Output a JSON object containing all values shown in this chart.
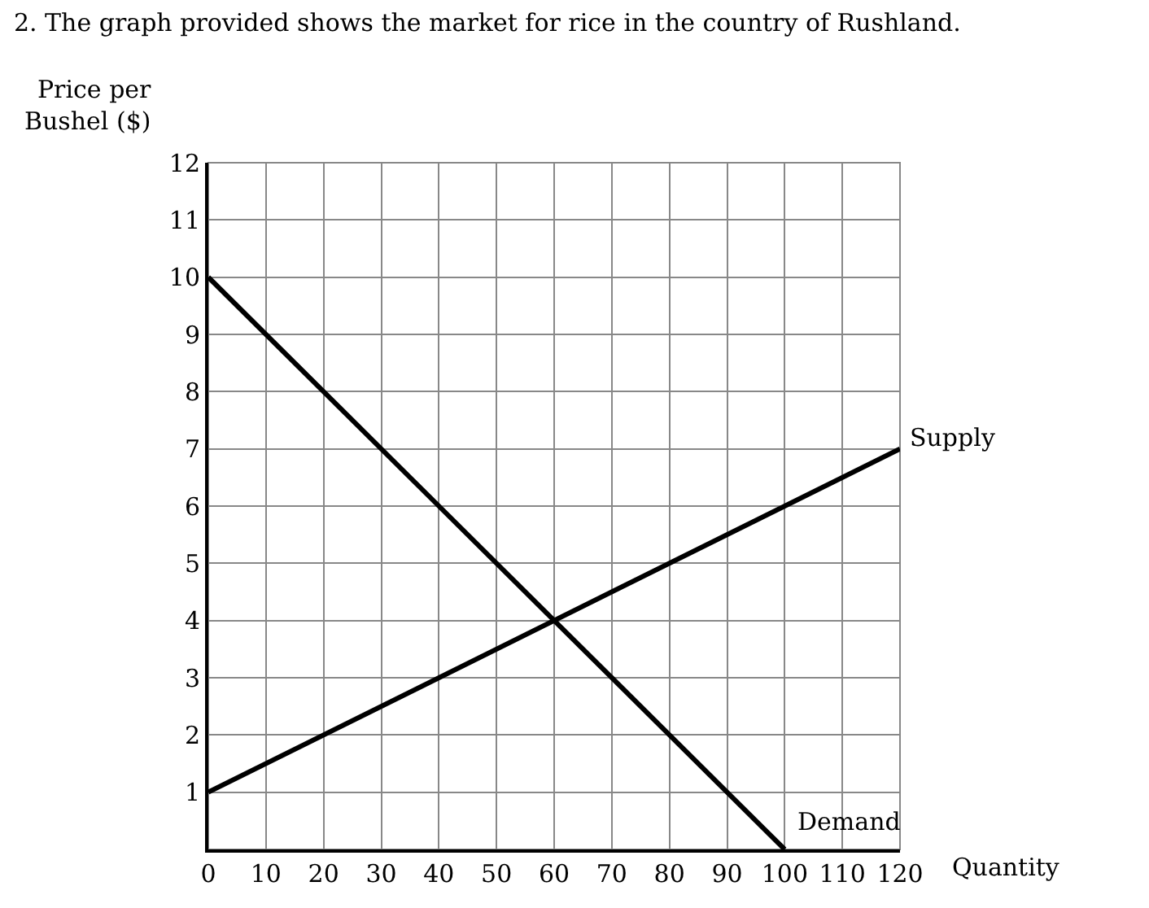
{
  "chart_data": {
    "type": "line",
    "title": "2. The graph provided shows the market for rice in the country of Rushland.",
    "xlabel": "Quantity",
    "ylabel": "Price per\nBushel ($)",
    "series": [
      {
        "x": [
          0,
          100
        ],
        "values": [
          10,
          0
        ],
        "color": "#000000"
      },
      {
        "x": [
          0,
          120
        ],
        "values": [
          1,
          7
        ],
        "color": "#000000"
      }
    ],
    "annotations": [
      {
        "text": "Supply",
        "x": 120,
        "y": 7
      },
      {
        "text": "Demand",
        "x": 100,
        "y": 0
      }
    ],
    "xlim": [
      0,
      120
    ],
    "ylim": [
      0,
      12
    ],
    "xticks": [
      0,
      10,
      20,
      30,
      40,
      50,
      60,
      70,
      80,
      90,
      100,
      110,
      120
    ],
    "yticks": [
      {
        "value": 0,
        "label": null
      },
      1,
      2,
      3,
      4,
      5,
      6,
      7,
      8,
      9,
      10,
      11,
      12
    ],
    "grid": true,
    "marker": "none",
    "line_style": "solid"
  }
}
